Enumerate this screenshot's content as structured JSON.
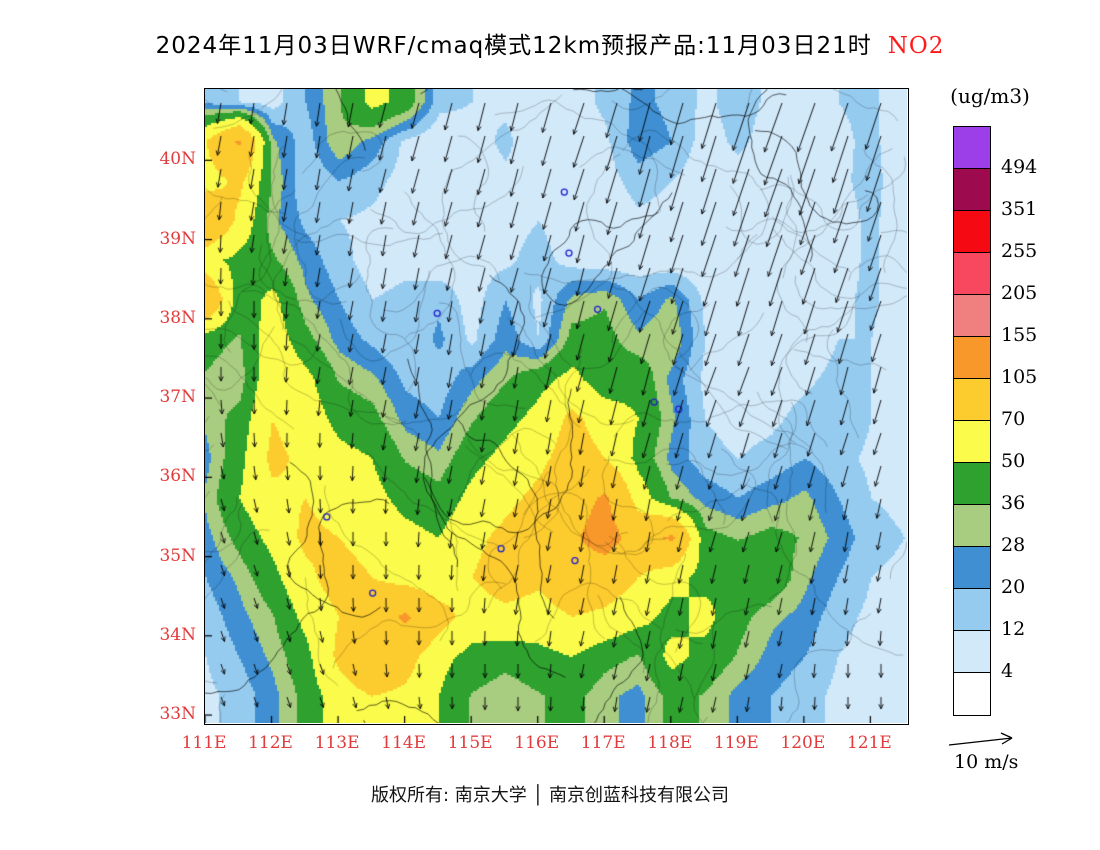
{
  "colors": {
    "axis_label": "#E23B3B",
    "pollutant": "#FF1A1A",
    "frame": "#000000",
    "marker": "#2222CC",
    "wind_arrow": "#000000",
    "boundary_line": "#000000"
  },
  "footer": {
    "copyright": "版权所有: 南京大学 │ 南京创蓝科技有限公司"
  },
  "chart_data": {
    "type": "heatmap",
    "title": "2024年11月03日WRF/cmaq模式12km预报产品:11月03日21时",
    "pollutant": "NO2",
    "unit": "(ug/m3)",
    "lon_range": [
      111.0,
      121.55
    ],
    "lat_range": [
      32.9,
      40.9
    ],
    "x_axis": {
      "ticks": [
        {
          "lon": 111,
          "label": "111E"
        },
        {
          "lon": 112,
          "label": "112E"
        },
        {
          "lon": 113,
          "label": "113E"
        },
        {
          "lon": 114,
          "label": "114E"
        },
        {
          "lon": 115,
          "label": "115E"
        },
        {
          "lon": 116,
          "label": "116E"
        },
        {
          "lon": 117,
          "label": "117E"
        },
        {
          "lon": 118,
          "label": "118E"
        },
        {
          "lon": 119,
          "label": "119E"
        },
        {
          "lon": 120,
          "label": "120E"
        },
        {
          "lon": 121,
          "label": "121E"
        }
      ]
    },
    "y_axis": {
      "ticks": [
        {
          "lat": 40,
          "label": "40N"
        },
        {
          "lat": 39,
          "label": "39N"
        },
        {
          "lat": 38,
          "label": "38N"
        },
        {
          "lat": 37,
          "label": "37N"
        },
        {
          "lat": 36,
          "label": "36N"
        },
        {
          "lat": 35,
          "label": "35N"
        },
        {
          "lat": 34,
          "label": "34N"
        },
        {
          "lat": 33,
          "label": "33N"
        }
      ]
    },
    "colorbar": {
      "boundary_values": [
        494,
        351,
        255,
        205,
        155,
        105,
        70,
        50,
        36,
        28,
        20,
        12,
        4
      ],
      "cell_colors_top_to_bottom": [
        "#9C3FE8",
        "#9E0A4E",
        "#F50A14",
        "#F8485F",
        "#F07F7F",
        "#F8982B",
        "#FCCB2E",
        "#FBFB4B",
        "#2FA12F",
        "#A8CC80",
        "#3F8FD2",
        "#96CBF0",
        "#D2E9FA",
        "#FFFFFF"
      ]
    },
    "grid": {
      "lons_start": 111.0,
      "lons_step": 0.5,
      "lats_start": 40.75,
      "lats_step": -0.5,
      "values": [
        [
          18,
          12,
          8,
          20,
          35,
          55,
          45,
          15,
          12,
          10,
          5,
          8,
          14,
          22,
          18,
          10,
          16,
          10,
          5,
          12,
          14,
          6
        ],
        [
          70,
          110,
          30,
          15,
          35,
          25,
          10,
          5,
          8,
          14,
          6,
          5,
          10,
          25,
          20,
          8,
          14,
          8,
          4,
          10,
          14,
          6
        ],
        [
          60,
          75,
          35,
          12,
          20,
          15,
          8,
          6,
          6,
          10,
          8,
          5,
          8,
          16,
          12,
          6,
          8,
          5,
          4,
          10,
          15,
          6
        ],
        [
          100,
          65,
          30,
          18,
          12,
          10,
          6,
          8,
          5,
          8,
          12,
          6,
          5,
          10,
          8,
          5,
          5,
          4,
          4,
          8,
          14,
          6
        ],
        [
          55,
          45,
          38,
          25,
          15,
          8,
          10,
          6,
          8,
          10,
          16,
          8,
          5,
          6,
          5,
          4,
          4,
          5,
          4,
          8,
          14,
          5
        ],
        [
          100,
          40,
          55,
          30,
          20,
          12,
          14,
          18,
          8,
          20,
          10,
          30,
          35,
          20,
          30,
          10,
          6,
          5,
          4,
          10,
          14,
          5
        ],
        [
          40,
          35,
          60,
          40,
          25,
          18,
          12,
          22,
          10,
          25,
          12,
          40,
          40,
          30,
          35,
          12,
          8,
          6,
          5,
          12,
          12,
          5
        ],
        [
          35,
          30,
          65,
          55,
          35,
          30,
          18,
          15,
          25,
          35,
          45,
          55,
          40,
          45,
          25,
          10,
          6,
          8,
          10,
          15,
          12,
          6
        ],
        [
          30,
          40,
          70,
          60,
          45,
          40,
          25,
          20,
          35,
          45,
          55,
          75,
          60,
          50,
          30,
          12,
          8,
          10,
          15,
          20,
          12,
          6
        ],
        [
          25,
          45,
          75,
          65,
          55,
          50,
          35,
          30,
          45,
          55,
          65,
          80,
          70,
          45,
          25,
          15,
          12,
          15,
          20,
          15,
          10,
          8
        ],
        [
          30,
          50,
          65,
          70,
          60,
          55,
          45,
          40,
          55,
          65,
          75,
          90,
          110,
          60,
          35,
          25,
          20,
          25,
          30,
          20,
          12,
          10
        ],
        [
          25,
          40,
          55,
          75,
          70,
          60,
          55,
          50,
          65,
          75,
          85,
          100,
          120,
          90,
          110,
          40,
          35,
          40,
          35,
          25,
          15,
          12
        ],
        [
          20,
          30,
          45,
          65,
          80,
          70,
          60,
          55,
          70,
          80,
          75,
          90,
          85,
          70,
          55,
          45,
          50,
          45,
          30,
          20,
          12,
          10
        ],
        [
          15,
          25,
          35,
          55,
          70,
          90,
          110,
          80,
          60,
          65,
          60,
          70,
          65,
          55,
          45,
          55,
          40,
          30,
          25,
          15,
          10,
          8
        ],
        [
          12,
          20,
          30,
          45,
          75,
          95,
          80,
          55,
          45,
          40,
          45,
          50,
          40,
          35,
          55,
          45,
          35,
          25,
          20,
          12,
          8,
          6
        ],
        [
          10,
          15,
          25,
          40,
          60,
          70,
          65,
          50,
          35,
          30,
          35,
          40,
          30,
          25,
          40,
          35,
          25,
          20,
          15,
          10,
          6,
          5
        ]
      ]
    },
    "wind": {
      "scale_label": "10 m/s",
      "scale_mps": 10,
      "grid": [
        [
          [
            -1,
            -6
          ],
          [
            -1,
            -6
          ],
          [
            -1,
            -7
          ],
          [
            -2,
            -7
          ],
          [
            -2,
            -8
          ],
          [
            -2,
            -8
          ],
          [
            -3,
            -9
          ],
          [
            -3,
            -11
          ],
          [
            -4,
            -13
          ],
          [
            -5,
            -14
          ],
          [
            -5,
            -14
          ],
          [
            -4,
            -13
          ]
        ],
        [
          [
            -1,
            -5
          ],
          [
            -1,
            -6
          ],
          [
            -1,
            -6
          ],
          [
            -2,
            -7
          ],
          [
            -2,
            -7
          ],
          [
            -2,
            -8
          ],
          [
            -3,
            -9
          ],
          [
            -3,
            -11
          ],
          [
            -4,
            -13
          ],
          [
            -5,
            -14
          ],
          [
            -4,
            -13
          ],
          [
            -4,
            -12
          ]
        ],
        [
          [
            0,
            -5
          ],
          [
            -1,
            -5
          ],
          [
            -1,
            -6
          ],
          [
            -1,
            -6
          ],
          [
            -2,
            -7
          ],
          [
            -2,
            -7
          ],
          [
            -2,
            -8
          ],
          [
            -3,
            -10
          ],
          [
            -4,
            -12
          ],
          [
            -4,
            -12
          ],
          [
            -4,
            -11
          ],
          [
            -3,
            -10
          ]
        ],
        [
          [
            0,
            -4
          ],
          [
            0,
            -5
          ],
          [
            -1,
            -5
          ],
          [
            -1,
            -6
          ],
          [
            -1,
            -6
          ],
          [
            -2,
            -7
          ],
          [
            -2,
            -8
          ],
          [
            -3,
            -9
          ],
          [
            -3,
            -10
          ],
          [
            -3,
            -10
          ],
          [
            -3,
            -9
          ],
          [
            -3,
            -8
          ]
        ],
        [
          [
            0,
            -4
          ],
          [
            0,
            -4
          ],
          [
            -1,
            -5
          ],
          [
            -1,
            -5
          ],
          [
            -1,
            -6
          ],
          [
            -1,
            -6
          ],
          [
            -2,
            -7
          ],
          [
            -2,
            -8
          ],
          [
            -3,
            -8
          ],
          [
            -3,
            -8
          ],
          [
            -2,
            -8
          ],
          [
            -2,
            -7
          ]
        ],
        [
          [
            1,
            -4
          ],
          [
            0,
            -4
          ],
          [
            0,
            -4
          ],
          [
            -1,
            -5
          ],
          [
            -1,
            -5
          ],
          [
            -1,
            -6
          ],
          [
            -1,
            -6
          ],
          [
            -2,
            -7
          ],
          [
            -2,
            -7
          ],
          [
            -2,
            -7
          ],
          [
            -2,
            -6
          ],
          [
            -2,
            -6
          ]
        ],
        [
          [
            1,
            -3
          ],
          [
            1,
            -4
          ],
          [
            0,
            -4
          ],
          [
            0,
            -4
          ],
          [
            -1,
            -5
          ],
          [
            -1,
            -5
          ],
          [
            -1,
            -6
          ],
          [
            -1,
            -6
          ],
          [
            -2,
            -6
          ],
          [
            -2,
            -6
          ],
          [
            -1,
            -6
          ],
          [
            -1,
            -5
          ]
        ],
        [
          [
            1,
            -3
          ],
          [
            1,
            -3
          ],
          [
            0,
            -4
          ],
          [
            0,
            -4
          ],
          [
            0,
            -4
          ],
          [
            -1,
            -5
          ],
          [
            -1,
            -5
          ],
          [
            -1,
            -5
          ],
          [
            -1,
            -5
          ],
          [
            -1,
            -5
          ],
          [
            -1,
            -5
          ],
          [
            -1,
            -4
          ]
        ],
        [
          [
            1,
            -3
          ],
          [
            1,
            -3
          ],
          [
            1,
            -3
          ],
          [
            0,
            -4
          ],
          [
            0,
            -4
          ],
          [
            0,
            -4
          ],
          [
            -1,
            -4
          ],
          [
            -1,
            -5
          ],
          [
            -1,
            -5
          ],
          [
            -1,
            -4
          ],
          [
            0,
            -4
          ],
          [
            0,
            -4
          ]
        ],
        [
          [
            1,
            -2
          ],
          [
            1,
            -3
          ],
          [
            1,
            -3
          ],
          [
            1,
            -3
          ],
          [
            0,
            -3
          ],
          [
            0,
            -4
          ],
          [
            0,
            -4
          ],
          [
            -1,
            -4
          ],
          [
            -1,
            -4
          ],
          [
            0,
            -4
          ],
          [
            0,
            -3
          ],
          [
            0,
            -3
          ]
        ]
      ]
    },
    "city_markers": [
      [
        116.47,
        38.83
      ],
      [
        116.4,
        39.6
      ],
      [
        114.49,
        38.07
      ],
      [
        116.9,
        38.12
      ],
      [
        118.12,
        36.86
      ],
      [
        117.75,
        36.95
      ],
      [
        112.83,
        35.5
      ],
      [
        113.52,
        34.54
      ],
      [
        116.56,
        34.95
      ],
      [
        115.45,
        35.1
      ]
    ],
    "map_texture": {
      "seed": 7,
      "county_lines": 95,
      "province_lines": 14
    }
  }
}
